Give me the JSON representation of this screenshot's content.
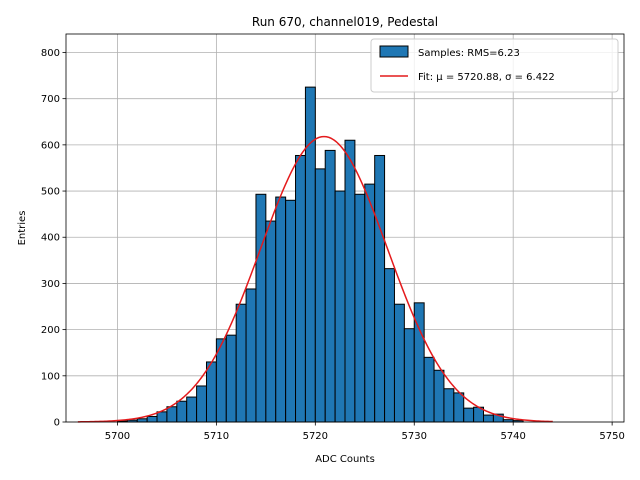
{
  "chart_data": {
    "type": "bar",
    "title": "Run 670, channel019, Pedestal",
    "xlabel": "ADC Counts",
    "ylabel": "Entries",
    "xlim": [
      5694.8,
      5751.2
    ],
    "ylim": [
      0,
      840
    ],
    "xticks": [
      5700,
      5710,
      5720,
      5730,
      5740,
      5750
    ],
    "yticks": [
      0,
      100,
      200,
      300,
      400,
      500,
      600,
      700,
      800
    ],
    "grid": true,
    "legend_position": "top-right",
    "histogram": {
      "name": "Samples: RMS=6.23",
      "color": "#1f77b4",
      "bin_width": 1,
      "bin_starts": [
        5700,
        5701,
        5702,
        5703,
        5704,
        5705,
        5706,
        5707,
        5708,
        5709,
        5710,
        5711,
        5712,
        5713,
        5714,
        5715,
        5716,
        5717,
        5718,
        5719,
        5720,
        5721,
        5722,
        5723,
        5724,
        5725,
        5726,
        5727,
        5728,
        5729,
        5730,
        5731,
        5732,
        5733,
        5734,
        5735,
        5736,
        5737,
        5738,
        5739,
        5740
      ],
      "counts": [
        2,
        4,
        7,
        12,
        22,
        33,
        45,
        54,
        78,
        130,
        180,
        188,
        255,
        288,
        493,
        435,
        487,
        480,
        577,
        725,
        548,
        588,
        500,
        610,
        493,
        515,
        577,
        332,
        255,
        202,
        258,
        140,
        112,
        72,
        63,
        30,
        32,
        15,
        17,
        5,
        3
      ]
    },
    "fit": {
      "name": "Fit: μ = 5720.88, σ = 6.422",
      "color": "#e41a1c",
      "mu": 5720.88,
      "sigma": 6.422,
      "amplitude": 618,
      "x_range": [
        5696,
        5744
      ]
    }
  }
}
